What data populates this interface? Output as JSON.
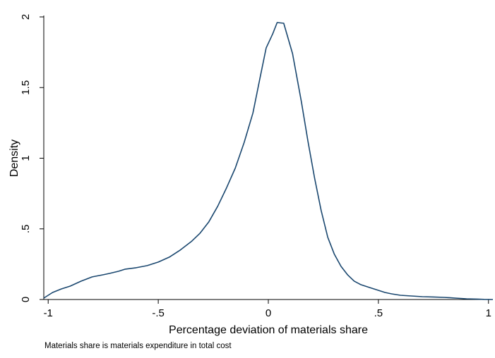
{
  "chart_data": {
    "type": "line",
    "title": "",
    "xlabel": "Percentage deviation of materials share",
    "ylabel": "Density",
    "note": "Materials share is materials expenditure in total cost",
    "xlim": [
      -1.02,
      1.02
    ],
    "ylim": [
      0,
      2
    ],
    "xticks": [
      {
        "value": -1,
        "label": "-1"
      },
      {
        "value": -0.5,
        "label": "-.5"
      },
      {
        "value": 0,
        "label": "0"
      },
      {
        "value": 0.5,
        "label": ".5"
      },
      {
        "value": 1,
        "label": "1"
      }
    ],
    "yticks": [
      {
        "value": 0,
        "label": "0"
      },
      {
        "value": 0.5,
        "label": ".5"
      },
      {
        "value": 1,
        "label": "1"
      },
      {
        "value": 1.5,
        "label": "1.5"
      },
      {
        "value": 2,
        "label": "2"
      }
    ],
    "grid": false,
    "legend": "none",
    "line_color": "#1a476f",
    "series": [
      {
        "x": [
          -1.02,
          -0.98,
          -0.94,
          -0.9,
          -0.85,
          -0.8,
          -0.75,
          -0.72,
          -0.68,
          -0.65,
          -0.6,
          -0.55,
          -0.5,
          -0.45,
          -0.4,
          -0.35,
          -0.31,
          -0.27,
          -0.23,
          -0.19,
          -0.15,
          -0.11,
          -0.07,
          -0.04,
          -0.01,
          0.02,
          0.04,
          0.07,
          0.11,
          0.15,
          0.18,
          0.21,
          0.24,
          0.27,
          0.3,
          0.33,
          0.36,
          0.39,
          0.42,
          0.46,
          0.5,
          0.53,
          0.56,
          0.6,
          0.65,
          0.7,
          0.75,
          0.8,
          0.85,
          0.9,
          0.95,
          0.98,
          1.02
        ],
        "y": [
          0.01,
          0.05,
          0.075,
          0.095,
          0.13,
          0.16,
          0.175,
          0.185,
          0.2,
          0.215,
          0.225,
          0.24,
          0.265,
          0.3,
          0.35,
          0.41,
          0.47,
          0.55,
          0.66,
          0.79,
          0.93,
          1.11,
          1.32,
          1.55,
          1.78,
          1.88,
          1.96,
          1.955,
          1.74,
          1.4,
          1.12,
          0.86,
          0.63,
          0.44,
          0.32,
          0.235,
          0.175,
          0.13,
          0.105,
          0.085,
          0.065,
          0.05,
          0.04,
          0.03,
          0.025,
          0.02,
          0.018,
          0.015,
          0.01,
          0.005,
          0.003,
          0.001,
          0.0
        ]
      }
    ]
  }
}
